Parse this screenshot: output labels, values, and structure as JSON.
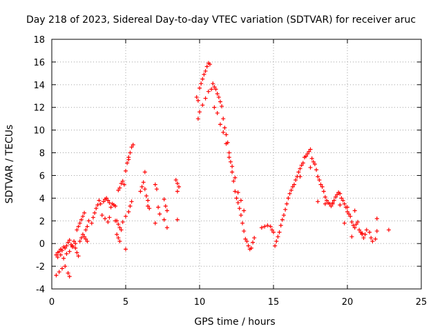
{
  "chart_data": {
    "type": "scatter",
    "title": "Day 218 of 2023, Sidereal Day-to-day VTEC variation (SDTVAR) for receiver aruc",
    "xlabel": "GPS time / hours",
    "ylabel": "SDTVAR / TECUs",
    "xlim": [
      0,
      25
    ],
    "ylim": [
      -4,
      18
    ],
    "xticks": [
      "0",
      "5",
      "10",
      "15",
      "20",
      "25"
    ],
    "yticks": [
      "-4",
      "-2",
      "0",
      "2",
      "4",
      "6",
      "8",
      "10",
      "12",
      "14",
      "16",
      "18"
    ],
    "grid": true,
    "marker": "+",
    "color": "#ff0000",
    "series": [
      {
        "name": "SDTVAR",
        "x": [
          0.3,
          0.4,
          0.5,
          0.6,
          0.7,
          0.8,
          0.9,
          1.0,
          1.1,
          1.2,
          1.3,
          1.4,
          1.5,
          1.6,
          1.7,
          1.8,
          1.9,
          2.0,
          2.1,
          2.2,
          2.3,
          2.4,
          0.3,
          0.5,
          0.7,
          0.9,
          1.1,
          1.2,
          0.4,
          0.6,
          0.8,
          1.0,
          1.2,
          1.4,
          1.6,
          1.7,
          1.8,
          1.9,
          2.0,
          2.1,
          2.2,
          2.3,
          2.4,
          2.5,
          2.7,
          2.8,
          2.9,
          3.0,
          3.1,
          3.2,
          3.3,
          3.5,
          3.6,
          3.7,
          3.8,
          3.9,
          4.0,
          4.1,
          4.2,
          4.3,
          4.4,
          4.5,
          4.6,
          4.7,
          4.8,
          4.9,
          5.0,
          5.1,
          5.2,
          5.3,
          5.4,
          5.5,
          3.4,
          3.6,
          3.8,
          3.9,
          4.3,
          4.5,
          4.6,
          4.7,
          4.8,
          5.0,
          5.2,
          5.3,
          5.4,
          4.4,
          4.5,
          4.6,
          5.0,
          5.2,
          6.0,
          6.1,
          6.2,
          6.3,
          6.4,
          6.5,
          6.5,
          6.6,
          7.0,
          7.1,
          7.2,
          7.3,
          7.6,
          7.7,
          7.8,
          7.8,
          8.4,
          8.5,
          8.6,
          8.5,
          6.3,
          7.0,
          7.6,
          8.5,
          9.8,
          9.9,
          10.0,
          10.1,
          10.2,
          10.3,
          10.4,
          10.5,
          10.6,
          10.7,
          9.9,
          10.0,
          10.2,
          10.4,
          10.6,
          10.8,
          10.9,
          11.0,
          11.1,
          11.2,
          11.3,
          11.4,
          11.5,
          11.6,
          11.7,
          11.8,
          11.9,
          12.0,
          12.1,
          12.2,
          12.3,
          12.4,
          12.5,
          12.6,
          12.7,
          12.8,
          12.9,
          13.0,
          13.1,
          13.2,
          13.3,
          13.4,
          13.5,
          13.6,
          13.7,
          11.0,
          11.2,
          11.4,
          11.6,
          11.8,
          12.0,
          12.2,
          12.4,
          12.6,
          12.8,
          13.0,
          14.2,
          14.4,
          14.6,
          14.8,
          14.9,
          15.0,
          15.1,
          15.2,
          15.3,
          15.4,
          15.5,
          15.6,
          15.7,
          15.8,
          15.9,
          16.0,
          16.1,
          16.2,
          16.3,
          16.4,
          16.5,
          16.6,
          16.7,
          16.8,
          16.9,
          17.0,
          17.1,
          17.2,
          17.3,
          17.4,
          17.5,
          17.6,
          17.7,
          17.8,
          17.9,
          18.0,
          18.1,
          18.2,
          18.3,
          18.4,
          18.5,
          18.6,
          18.7,
          18.8,
          18.9,
          19.0,
          19.1,
          19.2,
          19.3,
          19.4,
          19.5,
          19.6,
          19.7,
          19.8,
          19.9,
          20.0,
          20.1,
          20.2,
          20.3,
          20.4,
          20.5,
          20.6,
          20.7,
          20.8,
          20.9,
          21.0,
          21.1,
          21.2,
          21.3,
          21.5,
          21.6,
          21.7,
          21.9,
          22.0,
          22.0,
          22.8,
          18.0,
          18.5,
          19.0,
          19.5,
          20.0,
          20.5,
          21.0,
          19.8,
          20.3,
          16.8,
          17.5
        ],
        "y": [
          -1.0,
          -0.8,
          -0.7,
          -0.5,
          -0.6,
          -0.3,
          -0.4,
          -0.2,
          0.1,
          0.3,
          -0.1,
          -0.3,
          0.2,
          -0.4,
          -0.8,
          -1.1,
          0.2,
          0.5,
          0.8,
          0.6,
          0.4,
          0.2,
          -2.8,
          -2.5,
          -2.2,
          -2.0,
          -2.6,
          -2.9,
          -1.2,
          -1.0,
          -1.3,
          -0.9,
          -0.7,
          -0.2,
          0.0,
          1.2,
          1.5,
          1.8,
          2.1,
          2.4,
          2.7,
          1.2,
          1.5,
          2.0,
          1.8,
          2.3,
          2.7,
          3.1,
          3.4,
          3.8,
          3.5,
          3.7,
          3.9,
          4.0,
          3.8,
          3.6,
          3.2,
          3.5,
          3.4,
          3.3,
          2.0,
          4.7,
          4.9,
          5.3,
          5.5,
          5.2,
          6.4,
          7.1,
          7.6,
          8.0,
          8.5,
          8.7,
          2.5,
          2.2,
          1.9,
          2.3,
          2.0,
          1.7,
          1.4,
          1.2,
          1.9,
          2.4,
          2.8,
          3.3,
          3.7,
          0.8,
          0.5,
          0.2,
          -0.5,
          7.4,
          4.6,
          5.0,
          5.4,
          4.8,
          4.2,
          3.8,
          3.3,
          3.1,
          5.2,
          4.8,
          3.2,
          2.6,
          3.9,
          3.3,
          2.9,
          1.4,
          5.6,
          5.3,
          5.0,
          4.6,
          6.3,
          1.8,
          2.1,
          2.1,
          12.9,
          12.6,
          13.7,
          14.1,
          14.5,
          14.9,
          15.2,
          15.6,
          15.9,
          15.8,
          11.0,
          11.6,
          12.2,
          12.8,
          13.4,
          13.6,
          14.1,
          13.8,
          13.6,
          13.2,
          12.9,
          12.5,
          12.1,
          11.0,
          10.2,
          9.6,
          8.9,
          8.0,
          7.2,
          6.3,
          5.5,
          4.6,
          4.0,
          3.6,
          3.1,
          2.5,
          1.8,
          1.1,
          0.4,
          0.2,
          -0.2,
          -0.5,
          -0.4,
          0.1,
          0.5,
          12.0,
          11.5,
          10.5,
          9.8,
          8.8,
          7.6,
          6.8,
          5.8,
          4.5,
          3.8,
          2.9,
          1.4,
          1.5,
          1.6,
          1.5,
          1.2,
          1.0,
          -0.2,
          0.2,
          0.6,
          1.0,
          1.6,
          2.1,
          2.5,
          3.0,
          3.5,
          4.0,
          4.4,
          4.7,
          5.0,
          5.2,
          5.6,
          5.9,
          6.3,
          6.6,
          6.9,
          7.1,
          7.6,
          7.7,
          7.9,
          8.1,
          8.3,
          7.5,
          7.2,
          7.0,
          6.5,
          5.9,
          5.6,
          5.2,
          5.0,
          4.6,
          4.1,
          3.8,
          3.6,
          3.5,
          3.3,
          3.5,
          3.8,
          4.1,
          4.3,
          4.5,
          4.4,
          4.0,
          3.8,
          3.5,
          3.2,
          2.8,
          2.6,
          2.4,
          1.9,
          1.6,
          1.4,
          1.7,
          1.9,
          1.2,
          1.0,
          0.9,
          0.5,
          0.8,
          1.2,
          1.0,
          0.5,
          0.2,
          0.4,
          2.2,
          1.1,
          1.2,
          3.7,
          3.5,
          3.6,
          3.4,
          3.2,
          2.9,
          0.8,
          1.8,
          0.6,
          5.9,
          6.7
        ]
      }
    ]
  }
}
